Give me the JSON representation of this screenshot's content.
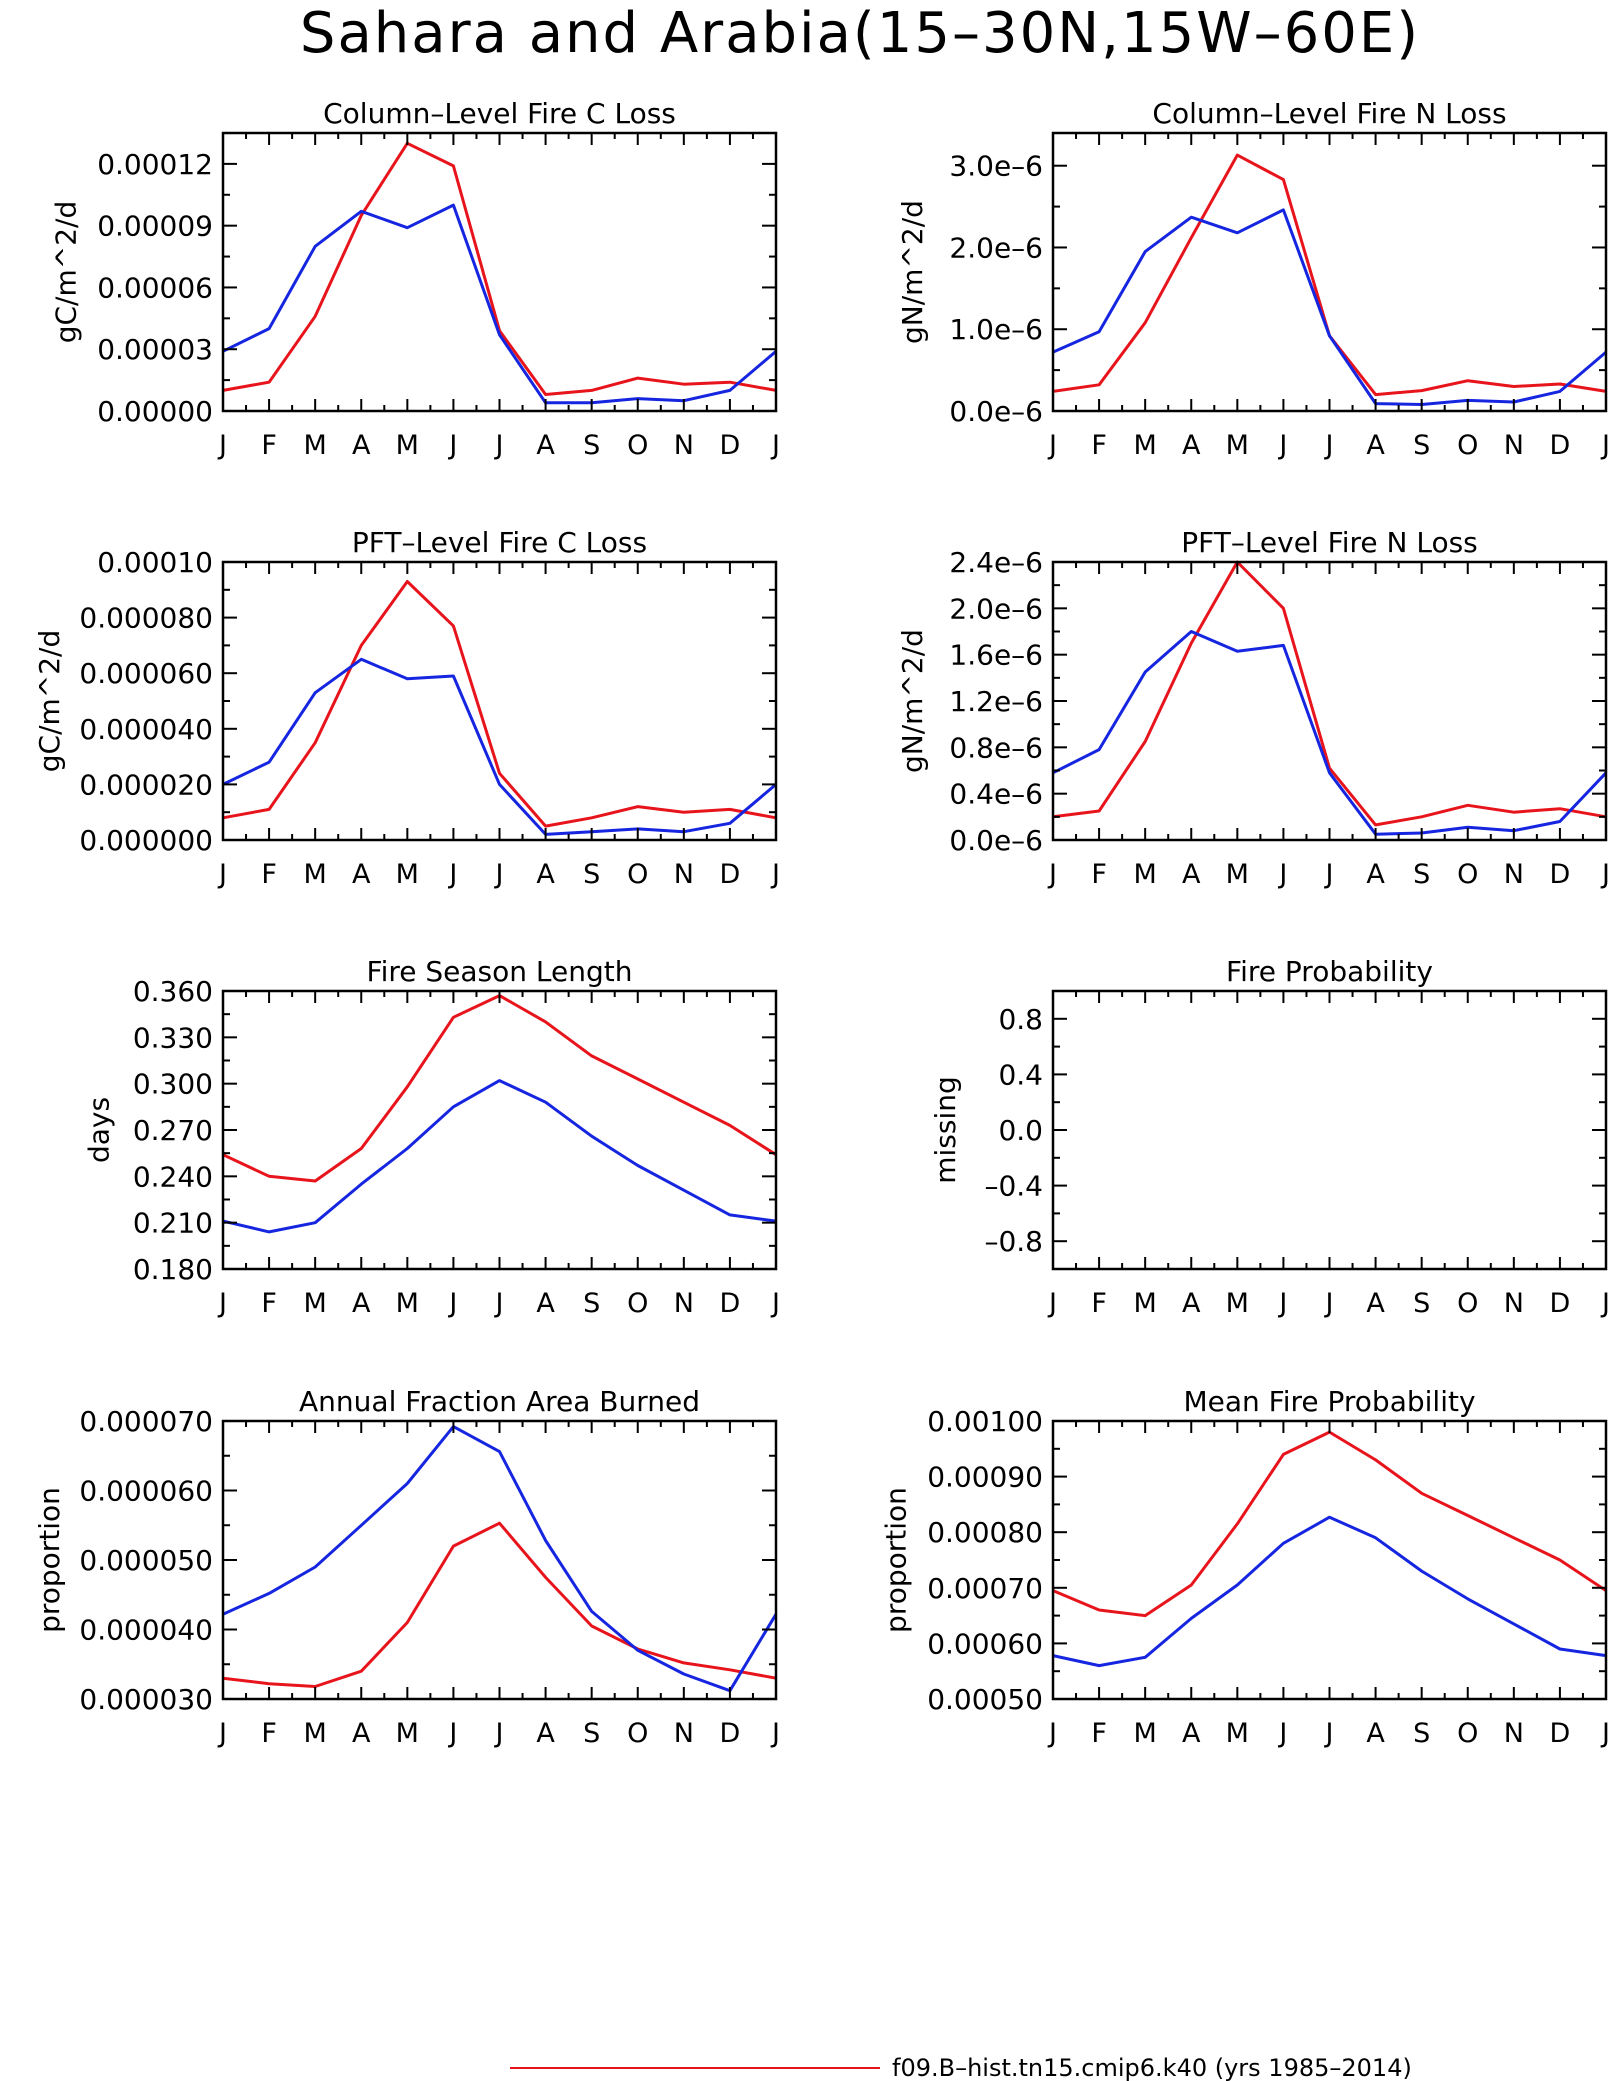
{
  "title": "Sahara and Arabia(15–30N,15W–60E)",
  "legend": [
    {
      "label": "f09.B–hist.tn15.cmip6.k40 (yrs 1985–2014)",
      "color": "#e8141c"
    }
  ],
  "colors": {
    "red": "#e8141c",
    "blue": "#1525e0"
  },
  "chart_data": [
    {
      "type": "line",
      "title": "Column–Level Fire C Loss",
      "ylabel": "gC/m^2/d",
      "x": [
        "J",
        "F",
        "M",
        "A",
        "M",
        "J",
        "J",
        "A",
        "S",
        "O",
        "N",
        "D",
        "J"
      ],
      "ylim": [
        0,
        0.000135
      ],
      "yticks": [
        0,
        3e-05,
        6e-05,
        9e-05,
        0.00012
      ],
      "yticklabels": [
        "0.00000",
        "0.00003",
        "0.00006",
        "0.00009",
        "0.00012"
      ],
      "series": [
        {
          "color": "#e8141c",
          "values": [
            1e-05,
            1.4e-05,
            4.6e-05,
            9.5e-05,
            0.00013,
            0.000119,
            3.9e-05,
            8e-06,
            1e-05,
            1.6e-05,
            1.3e-05,
            1.4e-05,
            1e-05
          ]
        },
        {
          "color": "#1525e0",
          "values": [
            2.9e-05,
            4e-05,
            8e-05,
            9.7e-05,
            8.9e-05,
            0.0001,
            3.7e-05,
            4e-06,
            4e-06,
            6e-06,
            5e-06,
            1e-05,
            2.9e-05
          ]
        }
      ]
    },
    {
      "type": "line",
      "title": "Column–Level Fire N Loss",
      "ylabel": "gN/m^2/d",
      "x": [
        "J",
        "F",
        "M",
        "A",
        "M",
        "J",
        "J",
        "A",
        "S",
        "O",
        "N",
        "D",
        "J"
      ],
      "ylim": [
        0,
        3.4e-06
      ],
      "yticks": [
        0,
        1e-06,
        2e-06,
        3e-06
      ],
      "yticklabels": [
        "0.0e–6",
        "1.0e–6",
        "2.0e–6",
        "3.0e–6"
      ],
      "series": [
        {
          "color": "#e8141c",
          "values": [
            2.4e-07,
            3.2e-07,
            1.08e-06,
            2.12e-06,
            3.13e-06,
            2.83e-06,
            9.2e-07,
            2e-07,
            2.5e-07,
            3.7e-07,
            3e-07,
            3.3e-07,
            2.4e-07
          ]
        },
        {
          "color": "#1525e0",
          "values": [
            7.2e-07,
            9.7e-07,
            1.95e-06,
            2.37e-06,
            2.18e-06,
            2.46e-06,
            9.2e-07,
            9e-08,
            8e-08,
            1.3e-07,
            1.1e-07,
            2.4e-07,
            7.2e-07
          ]
        }
      ]
    },
    {
      "type": "line",
      "title": "PFT–Level Fire C Loss",
      "ylabel": "gC/m^2/d",
      "x": [
        "J",
        "F",
        "M",
        "A",
        "M",
        "J",
        "J",
        "A",
        "S",
        "O",
        "N",
        "D",
        "J"
      ],
      "ylim": [
        0,
        0.0001
      ],
      "yticks": [
        0,
        2e-05,
        4e-05,
        6e-05,
        8e-05,
        0.0001
      ],
      "yticklabels": [
        "0.000000",
        "0.000020",
        "0.000040",
        "0.000060",
        "0.000080",
        "0.00010"
      ],
      "series": [
        {
          "color": "#e8141c",
          "values": [
            8e-06,
            1.1e-05,
            3.5e-05,
            7e-05,
            9.3e-05,
            7.7e-05,
            2.4e-05,
            5e-06,
            8e-06,
            1.2e-05,
            1e-05,
            1.1e-05,
            8e-06
          ]
        },
        {
          "color": "#1525e0",
          "values": [
            2e-05,
            2.8e-05,
            5.3e-05,
            6.5e-05,
            5.8e-05,
            5.9e-05,
            2e-05,
            2e-06,
            3e-06,
            4e-06,
            3e-06,
            6e-06,
            2e-05
          ]
        }
      ]
    },
    {
      "type": "line",
      "title": "PFT–Level Fire N Loss",
      "ylabel": "gN/m^2/d",
      "x": [
        "J",
        "F",
        "M",
        "A",
        "M",
        "J",
        "J",
        "A",
        "S",
        "O",
        "N",
        "D",
        "J"
      ],
      "ylim": [
        0,
        2.4e-06
      ],
      "yticks": [
        0,
        4e-07,
        8e-07,
        1.2e-06,
        1.6e-06,
        2e-06,
        2.4e-06
      ],
      "yticklabels": [
        "0.0e–6",
        "0.4e–6",
        "0.8e–6",
        "1.2e–6",
        "1.6e–6",
        "2.0e–6",
        "2.4e–6"
      ],
      "series": [
        {
          "color": "#e8141c",
          "values": [
            2e-07,
            2.5e-07,
            8.5e-07,
            1.7e-06,
            2.4e-06,
            2e-06,
            6.2e-07,
            1.3e-07,
            2e-07,
            3e-07,
            2.4e-07,
            2.7e-07,
            2e-07
          ]
        },
        {
          "color": "#1525e0",
          "values": [
            5.8e-07,
            7.8e-07,
            1.45e-06,
            1.8e-06,
            1.63e-06,
            1.68e-06,
            5.8e-07,
            5e-08,
            6e-08,
            1.1e-07,
            8e-08,
            1.6e-07,
            5.8e-07
          ]
        }
      ]
    },
    {
      "type": "line",
      "title": "Fire Season Length",
      "ylabel": "days",
      "x": [
        "J",
        "F",
        "M",
        "A",
        "M",
        "J",
        "J",
        "A",
        "S",
        "O",
        "N",
        "D",
        "J"
      ],
      "ylim": [
        0.18,
        0.36
      ],
      "yticks": [
        0.18,
        0.21,
        0.24,
        0.27,
        0.3,
        0.33,
        0.36
      ],
      "yticklabels": [
        "0.180",
        "0.210",
        "0.240",
        "0.270",
        "0.300",
        "0.330",
        "0.360"
      ],
      "series": [
        {
          "color": "#e8141c",
          "values": [
            0.254,
            0.24,
            0.237,
            0.258,
            0.298,
            0.343,
            0.357,
            0.34,
            0.318,
            0.303,
            0.288,
            0.273,
            0.254
          ]
        },
        {
          "color": "#1525e0",
          "values": [
            0.211,
            0.204,
            0.21,
            0.235,
            0.258,
            0.285,
            0.302,
            0.288,
            0.266,
            0.247,
            0.231,
            0.215,
            0.211
          ]
        }
      ]
    },
    {
      "type": "line",
      "title": "Fire Probability",
      "ylabel": "missing",
      "x": [
        "J",
        "F",
        "M",
        "A",
        "M",
        "J",
        "J",
        "A",
        "S",
        "O",
        "N",
        "D",
        "J"
      ],
      "ylim": [
        -1,
        1
      ],
      "yticks": [
        -0.8,
        -0.4,
        0,
        0.4,
        0.8
      ],
      "yticklabels": [
        "–0.8",
        "–0.4",
        "0.0",
        "0.4",
        "0.8"
      ],
      "series": []
    },
    {
      "type": "line",
      "title": "Annual Fraction Area Burned",
      "ylabel": "proportion",
      "x": [
        "J",
        "F",
        "M",
        "A",
        "M",
        "J",
        "J",
        "A",
        "S",
        "O",
        "N",
        "D",
        "J"
      ],
      "ylim": [
        3e-05,
        7e-05
      ],
      "yticks": [
        3e-05,
        4e-05,
        5e-05,
        6e-05,
        7e-05
      ],
      "yticklabels": [
        "0.000030",
        "0.000040",
        "0.000050",
        "0.000060",
        "0.000070"
      ],
      "series": [
        {
          "color": "#e8141c",
          "values": [
            3.3e-05,
            3.22e-05,
            3.18e-05,
            3.4e-05,
            4.1e-05,
            5.2e-05,
            5.53e-05,
            4.75e-05,
            4.05e-05,
            3.72e-05,
            3.52e-05,
            3.42e-05,
            3.3e-05
          ]
        },
        {
          "color": "#1525e0",
          "values": [
            4.22e-05,
            4.52e-05,
            4.9e-05,
            5.5e-05,
            6.1e-05,
            6.92e-05,
            6.56e-05,
            5.28e-05,
            4.26e-05,
            3.7e-05,
            3.36e-05,
            3.12e-05,
            4.22e-05
          ]
        }
      ]
    },
    {
      "type": "line",
      "title": "Mean Fire Probability",
      "ylabel": "proportion",
      "x": [
        "J",
        "F",
        "M",
        "A",
        "M",
        "J",
        "J",
        "A",
        "S",
        "O",
        "N",
        "D",
        "J"
      ],
      "ylim": [
        0.0005,
        0.001
      ],
      "yticks": [
        0.0005,
        0.0006,
        0.0007,
        0.0008,
        0.0009,
        0.001
      ],
      "yticklabels": [
        "0.00050",
        "0.00060",
        "0.00070",
        "0.00080",
        "0.00090",
        "0.00100"
      ],
      "series": [
        {
          "color": "#e8141c",
          "values": [
            0.000695,
            0.00066,
            0.00065,
            0.000705,
            0.000815,
            0.00094,
            0.00098,
            0.00093,
            0.00087,
            0.00083,
            0.00079,
            0.00075,
            0.000695
          ]
        },
        {
          "color": "#1525e0",
          "values": [
            0.000578,
            0.00056,
            0.000575,
            0.000645,
            0.000705,
            0.00078,
            0.000827,
            0.00079,
            0.00073,
            0.00068,
            0.000635,
            0.00059,
            0.000578
          ]
        }
      ]
    }
  ]
}
